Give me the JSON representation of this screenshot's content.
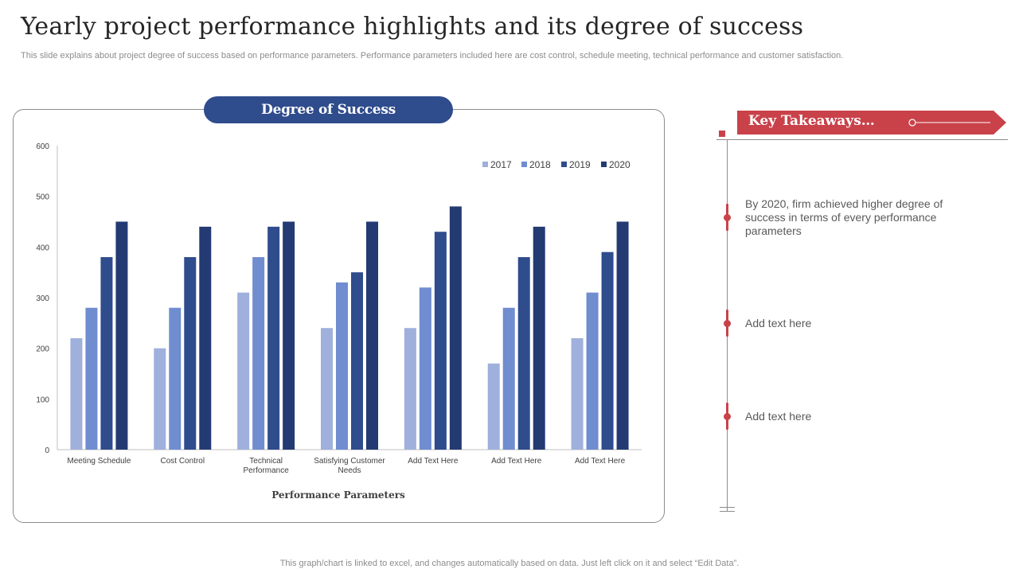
{
  "page": {
    "title": "Yearly project performance highlights and its degree of success",
    "subtitle": "This slide explains about project degree of success based on performance parameters. Performance parameters included here are cost control, schedule meeting, technical performance and customer satisfaction.",
    "footer": "This graph/chart is linked to excel,  and changes automatically based on data. Just left click on it and select “Edit Data”."
  },
  "chart_header": {
    "label": "Degree of Success"
  },
  "chart_data": {
    "type": "bar",
    "title": "Degree of Success",
    "xlabel": "Performance Parameters",
    "ylabel": "",
    "ylim": [
      0,
      600
    ],
    "yticks": [
      0,
      100,
      200,
      300,
      400,
      500,
      600
    ],
    "legend_position": "top-right",
    "categories": [
      [
        "Meeting Schedule"
      ],
      [
        "Cost Control"
      ],
      [
        "Technical",
        "Performance"
      ],
      [
        "Satisfying Customer",
        "Needs"
      ],
      [
        "Add Text Here"
      ],
      [
        "Add Text Here"
      ],
      [
        "Add Text Here"
      ]
    ],
    "series": [
      {
        "name": "2017",
        "color": "#9fb0dc",
        "values": [
          220,
          200,
          310,
          240,
          240,
          170,
          220
        ]
      },
      {
        "name": "2018",
        "color": "#6f8dcf",
        "values": [
          280,
          280,
          380,
          330,
          320,
          280,
          310
        ]
      },
      {
        "name": "2019",
        "color": "#2f4c8c",
        "values": [
          380,
          380,
          440,
          350,
          430,
          380,
          390
        ]
      },
      {
        "name": "2020",
        "color": "#243a73",
        "values": [
          450,
          440,
          450,
          450,
          480,
          440,
          450
        ]
      }
    ]
  },
  "takeaways": {
    "heading": "Key Takeaways…",
    "items": [
      "By 2020, firm achieved higher degree of success in terms of every performance parameters",
      "Add text here",
      "Add text here"
    ]
  },
  "colors": {
    "accent_red": "#c9424a",
    "brand_blue": "#2f4c8c"
  }
}
